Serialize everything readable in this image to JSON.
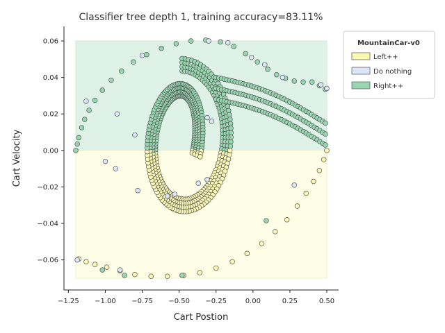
{
  "chart_data": {
    "type": "scatter",
    "title": "Classifier tree depth 1, training accuracy=83.11%",
    "xlabel": "Cart Postion",
    "ylabel": "Cart Velocity",
    "xlim": [
      -1.28,
      0.58
    ],
    "ylim": [
      -0.0765,
      0.068
    ],
    "xticks": [
      -1.25,
      -1.0,
      -0.75,
      -0.5,
      -0.25,
      0.0,
      0.25,
      0.5
    ],
    "xtick_labels": [
      "−1.25",
      "−1.00",
      "−0.75",
      "−0.50",
      "−0.25",
      "0.00",
      "0.25",
      "0.50"
    ],
    "yticks": [
      -0.06,
      -0.04,
      -0.02,
      0.0,
      0.02,
      0.04,
      0.06
    ],
    "ytick_labels": [
      "−0.06",
      "−0.04",
      "−0.02",
      "0.00",
      "0.02",
      "0.04",
      "0.06"
    ],
    "grid": false,
    "legend_position": "top-right outside",
    "legend_title": "MountainCar-v0",
    "regions": [
      {
        "label": "Right++",
        "x": [
          -1.2,
          0.5
        ],
        "y": [
          0.0,
          0.06
        ],
        "color": "#dff2e8"
      },
      {
        "label": "Left++",
        "x": [
          -1.2,
          0.5
        ],
        "y": [
          -0.07,
          0.0
        ],
        "color": "#fefde6"
      }
    ],
    "series": [
      {
        "name": "Left++",
        "color": "#fbf8b4"
      },
      {
        "name": "Do nothing",
        "color": "#dce6f6"
      },
      {
        "name": "Right++",
        "color": "#97d6b0"
      }
    ],
    "outer_trajectory": {
      "right": [
        [
          -1.2,
          0.0
        ],
        [
          -1.19,
          0.0035
        ],
        [
          -1.18,
          0.007
        ],
        [
          -1.16,
          0.0125
        ],
        [
          -1.14,
          0.017
        ],
        [
          -1.11,
          0.022
        ],
        [
          -1.07,
          0.0275
        ],
        [
          -1.02,
          0.033
        ],
        [
          -0.96,
          0.0385
        ],
        [
          -0.89,
          0.0435
        ],
        [
          -0.81,
          0.0485
        ],
        [
          -0.72,
          0.0525
        ],
        [
          -0.62,
          0.056
        ],
        [
          -0.52,
          0.0585
        ],
        [
          -0.42,
          0.06
        ],
        [
          -0.32,
          0.0605
        ],
        [
          -0.22,
          0.0595
        ],
        [
          -0.13,
          0.057
        ],
        [
          -0.05,
          0.053
        ],
        [
          0.03,
          0.0485
        ],
        [
          0.1,
          0.0445
        ],
        [
          0.16,
          0.0415
        ],
        [
          0.22,
          0.0395
        ],
        [
          0.28,
          0.038
        ],
        [
          0.34,
          0.0375
        ],
        [
          0.4,
          0.0375
        ],
        [
          0.45,
          0.0355
        ],
        [
          0.49,
          0.0335
        ]
      ],
      "left": [
        [
          0.5,
          0.0
        ],
        [
          0.48,
          -0.005
        ],
        [
          0.45,
          -0.011
        ],
        [
          0.41,
          -0.017
        ],
        [
          0.36,
          -0.0235
        ],
        [
          0.3,
          -0.0305
        ],
        [
          0.23,
          -0.038
        ],
        [
          0.15,
          -0.0445
        ],
        [
          0.06,
          -0.051
        ],
        [
          -0.04,
          -0.0565
        ],
        [
          -0.14,
          -0.061
        ],
        [
          -0.25,
          -0.0645
        ],
        [
          -0.36,
          -0.067
        ],
        [
          -0.47,
          -0.0685
        ],
        [
          -0.58,
          -0.069
        ],
        [
          -0.69,
          -0.069
        ],
        [
          -0.8,
          -0.068
        ],
        [
          -0.9,
          -0.066
        ],
        [
          -0.99,
          -0.064
        ],
        [
          -1.07,
          -0.0625
        ],
        [
          -1.13,
          -0.061
        ],
        [
          -1.18,
          -0.0595
        ]
      ],
      "do_nothing": [
        [
          -1.13,
          0.027
        ],
        [
          -0.75,
          0.052
        ],
        [
          -0.3,
          0.06
        ],
        [
          -0.17,
          0.059
        ],
        [
          -0.01,
          0.051
        ],
        [
          0.08,
          0.047
        ],
        [
          0.2,
          0.04
        ],
        [
          0.46,
          0.036
        ],
        [
          0.5,
          0.034
        ],
        [
          0.28,
          -0.019
        ],
        [
          -1.19,
          -0.06
        ],
        [
          -0.9,
          -0.0655
        ]
      ]
    },
    "inner_spiral": {
      "x_center": -0.48,
      "y_center": 0.005,
      "rx_start": 0.35,
      "ry_start": 0.042,
      "rx_end": 0.1,
      "ry_end": 0.024,
      "turns": 1.3,
      "band_width": 0.06
    }
  }
}
